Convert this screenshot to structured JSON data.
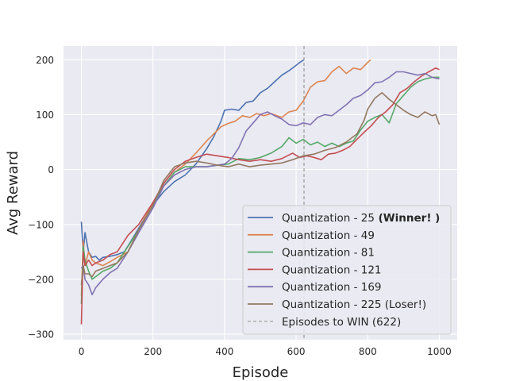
{
  "chart_data": {
    "type": "line",
    "title": "",
    "xlabel": "Episode",
    "ylabel": "Avg Reward",
    "xlim": [
      -50,
      1050
    ],
    "ylim": [
      -310,
      225
    ],
    "xticks": [
      0,
      200,
      400,
      600,
      800,
      1000
    ],
    "yticks": [
      -300,
      -200,
      -100,
      0,
      100,
      200
    ],
    "xtick_labels": [
      "0",
      "200",
      "400",
      "600",
      "800",
      "1000"
    ],
    "ytick_labels": [
      "−300",
      "−200",
      "−100",
      "0",
      "100",
      "200"
    ],
    "grid": true,
    "legend_position": "lower-right",
    "series": [
      {
        "name": "Quantization - 25",
        "name_suffix": "(Winner! )",
        "color": "#4c72b0",
        "x": [
          0,
          5,
          10,
          20,
          30,
          40,
          50,
          60,
          80,
          100,
          120,
          150,
          180,
          200,
          230,
          260,
          290,
          320,
          350,
          370,
          390,
          400,
          420,
          440,
          460,
          480,
          500,
          520,
          540,
          560,
          580,
          600,
          610,
          622
        ],
        "y": [
          -95,
          -150,
          -115,
          -150,
          -160,
          -158,
          -165,
          -160,
          -158,
          -155,
          -150,
          -118,
          -85,
          -65,
          -40,
          -22,
          -10,
          10,
          38,
          60,
          88,
          108,
          110,
          108,
          122,
          125,
          140,
          148,
          160,
          172,
          180,
          190,
          195,
          200
        ]
      },
      {
        "name": "Quantization - 49",
        "color": "#dd8452",
        "x": [
          0,
          5,
          10,
          20,
          30,
          40,
          60,
          80,
          100,
          130,
          160,
          200,
          230,
          260,
          290,
          320,
          350,
          370,
          390,
          410,
          430,
          450,
          470,
          490,
          510,
          530,
          560,
          580,
          600,
          620,
          640,
          660,
          680,
          700,
          720,
          740,
          760,
          780,
          800,
          808
        ],
        "y": [
          -230,
          -130,
          -175,
          -150,
          -165,
          -170,
          -175,
          -168,
          -160,
          -150,
          -110,
          -60,
          -30,
          -5,
          10,
          30,
          52,
          65,
          78,
          84,
          88,
          98,
          95,
          102,
          98,
          102,
          95,
          105,
          108,
          125,
          150,
          160,
          162,
          178,
          188,
          175,
          185,
          182,
          195,
          200
        ]
      },
      {
        "name": "Quantization - 81",
        "color": "#55a868",
        "x": [
          0,
          5,
          10,
          20,
          30,
          40,
          60,
          80,
          100,
          130,
          160,
          200,
          230,
          260,
          290,
          320,
          350,
          380,
          410,
          440,
          470,
          500,
          530,
          560,
          580,
          600,
          620,
          640,
          660,
          680,
          700,
          720,
          740,
          760,
          780,
          800,
          820,
          840,
          860,
          880,
          900,
          920,
          940,
          960,
          980,
          1000
        ],
        "y": [
          -245,
          -140,
          -165,
          -185,
          -200,
          -195,
          -185,
          -180,
          -170,
          -140,
          -110,
          -65,
          -30,
          -5,
          5,
          5,
          5,
          8,
          10,
          20,
          18,
          22,
          30,
          42,
          58,
          48,
          55,
          45,
          50,
          42,
          48,
          42,
          48,
          52,
          72,
          88,
          95,
          100,
          85,
          120,
          135,
          150,
          160,
          165,
          168,
          168
        ]
      },
      {
        "name": "Quantization - 121",
        "color": "#c44e52",
        "x": [
          0,
          5,
          10,
          20,
          30,
          40,
          60,
          80,
          100,
          130,
          160,
          200,
          230,
          260,
          290,
          320,
          350,
          380,
          410,
          440,
          470,
          500,
          530,
          560,
          590,
          610,
          630,
          650,
          670,
          690,
          710,
          730,
          750,
          770,
          790,
          810,
          830,
          850,
          870,
          890,
          910,
          930,
          950,
          970,
          990,
          1000
        ],
        "y": [
          -282,
          -150,
          -175,
          -165,
          -175,
          -170,
          -165,
          -155,
          -150,
          -120,
          -100,
          -60,
          -25,
          0,
          15,
          22,
          28,
          25,
          22,
          18,
          15,
          18,
          15,
          20,
          30,
          22,
          25,
          22,
          18,
          28,
          30,
          35,
          42,
          55,
          68,
          80,
          95,
          105,
          118,
          140,
          148,
          160,
          170,
          178,
          185,
          182
        ]
      },
      {
        "name": "Quantization - 169",
        "color": "#8172b3",
        "x": [
          0,
          5,
          10,
          20,
          30,
          40,
          60,
          80,
          100,
          130,
          160,
          200,
          230,
          260,
          290,
          320,
          350,
          380,
          400,
          420,
          440,
          460,
          480,
          500,
          520,
          540,
          560,
          580,
          600,
          620,
          640,
          660,
          680,
          700,
          720,
          740,
          760,
          780,
          800,
          820,
          840,
          860,
          880,
          900,
          920,
          940,
          960,
          980,
          1000
        ],
        "y": [
          -180,
          -175,
          -200,
          -210,
          -228,
          -215,
          -200,
          -188,
          -180,
          -150,
          -115,
          -70,
          -30,
          -10,
          0,
          5,
          5,
          8,
          10,
          20,
          40,
          70,
          85,
          100,
          105,
          98,
          92,
          82,
          80,
          85,
          82,
          95,
          100,
          98,
          108,
          118,
          130,
          135,
          145,
          158,
          160,
          168,
          178,
          178,
          175,
          172,
          175,
          168,
          165
        ]
      },
      {
        "name": "Quantization - 225 (Loser!)",
        "color": "#937860",
        "x": [
          0,
          5,
          10,
          20,
          30,
          40,
          60,
          80,
          100,
          130,
          160,
          200,
          230,
          260,
          290,
          320,
          350,
          380,
          410,
          440,
          470,
          500,
          530,
          560,
          590,
          620,
          650,
          680,
          710,
          740,
          770,
          790,
          800,
          820,
          840,
          860,
          880,
          900,
          920,
          940,
          960,
          980,
          990,
          1000
        ],
        "y": [
          -210,
          -175,
          -190,
          -190,
          -195,
          -185,
          -180,
          -175,
          -170,
          -150,
          -110,
          -65,
          -20,
          5,
          12,
          15,
          12,
          8,
          5,
          10,
          5,
          8,
          10,
          12,
          18,
          25,
          28,
          35,
          40,
          50,
          65,
          90,
          110,
          130,
          140,
          128,
          118,
          108,
          100,
          95,
          105,
          98,
          100,
          82
        ]
      }
    ],
    "vline": {
      "x": 622,
      "label": "Episodes to WIN (622)",
      "color": "#999999"
    }
  }
}
